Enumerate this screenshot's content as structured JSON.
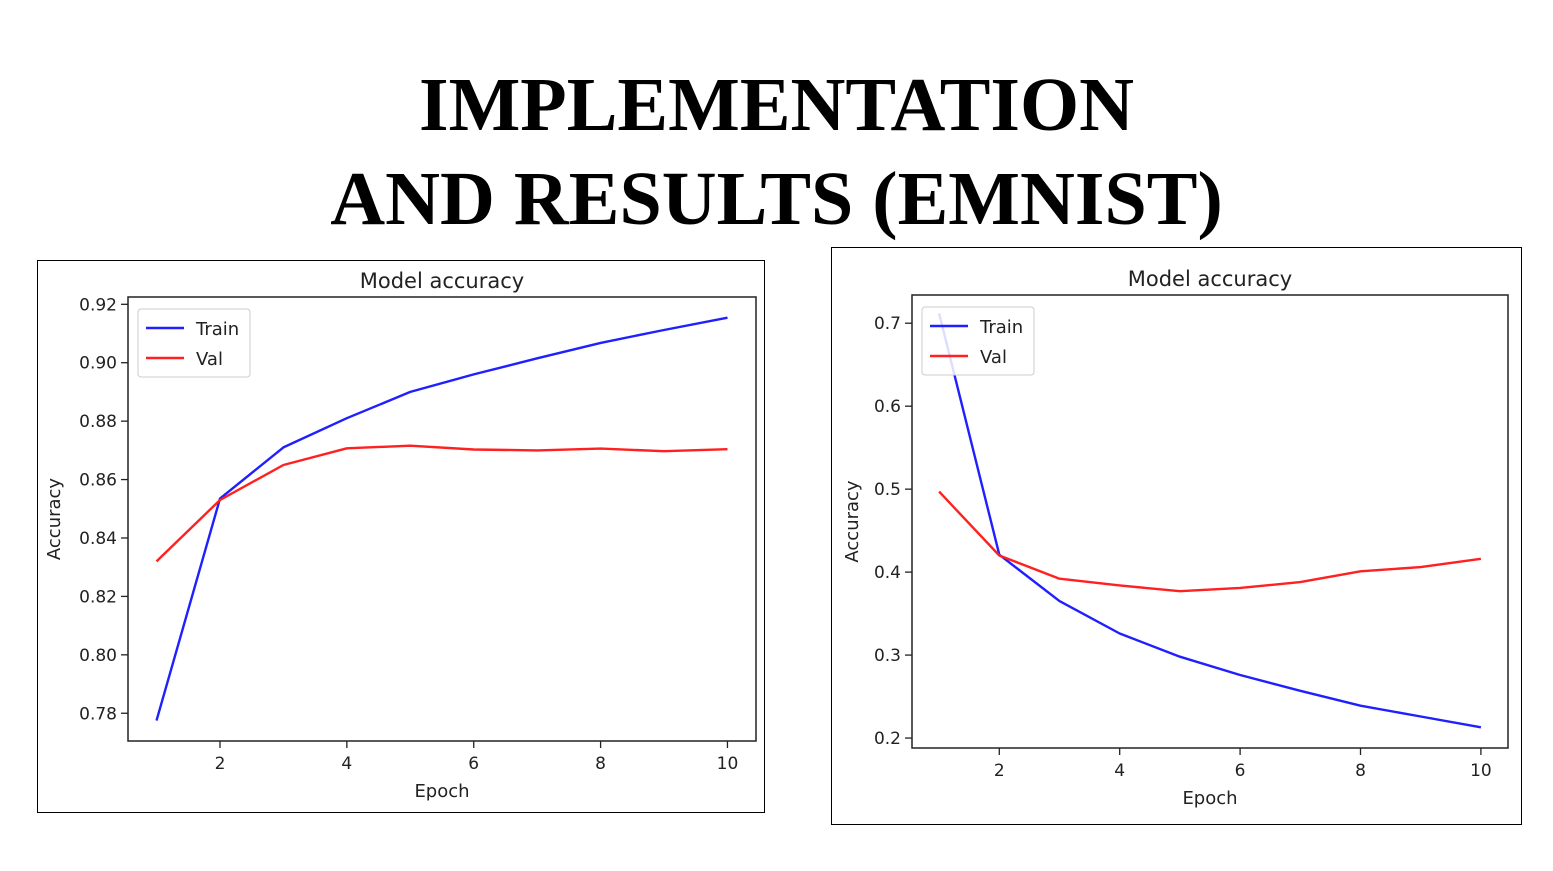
{
  "slide": {
    "title_line1": "IMPLEMENTATION",
    "title_line2": "AND RESULTS (EMNIST)"
  },
  "chart_data": [
    {
      "type": "line",
      "title": "Model accuracy",
      "xlabel": "Epoch",
      "ylabel": "Accuracy",
      "x": [
        1,
        2,
        3,
        4,
        5,
        6,
        7,
        8,
        9,
        10
      ],
      "xticks": [
        2,
        4,
        6,
        8,
        10
      ],
      "yticks": [
        0.78,
        0.8,
        0.82,
        0.84,
        0.86,
        0.88,
        0.9,
        0.92
      ],
      "ytick_decimals": 2,
      "xlim": [
        0.55,
        10.45
      ],
      "ylim": [
        0.7705,
        0.9225
      ],
      "grid": false,
      "legend": "upper left",
      "series": [
        {
          "name": "Train",
          "color": "#1f1fff",
          "values": [
            0.7775,
            0.8535,
            0.871,
            0.881,
            0.89,
            0.896,
            0.9015,
            0.9068,
            0.9112,
            0.9154
          ]
        },
        {
          "name": "Val",
          "color": "#ff2020",
          "values": [
            0.832,
            0.853,
            0.865,
            0.8707,
            0.8716,
            0.8703,
            0.87,
            0.8706,
            0.8697,
            0.8704
          ]
        }
      ]
    },
    {
      "type": "line",
      "title": "Model accuracy",
      "xlabel": "Epoch",
      "ylabel": "Accuracy",
      "x": [
        1,
        2,
        3,
        4,
        5,
        6,
        7,
        8,
        9,
        10
      ],
      "xticks": [
        2,
        4,
        6,
        8,
        10
      ],
      "yticks": [
        0.2,
        0.3,
        0.4,
        0.5,
        0.6,
        0.7
      ],
      "ytick_decimals": 1,
      "xlim": [
        0.55,
        10.45
      ],
      "ylim": [
        0.188,
        0.734
      ],
      "grid": false,
      "legend": "upper left",
      "series": [
        {
          "name": "Train",
          "color": "#1f1fff",
          "values": [
            0.712,
            0.421,
            0.365,
            0.326,
            0.298,
            0.276,
            0.257,
            0.239,
            0.226,
            0.213
          ]
        },
        {
          "name": "Val",
          "color": "#ff2020",
          "values": [
            0.497,
            0.42,
            0.392,
            0.384,
            0.377,
            0.381,
            0.388,
            0.401,
            0.406,
            0.416
          ]
        }
      ]
    }
  ]
}
